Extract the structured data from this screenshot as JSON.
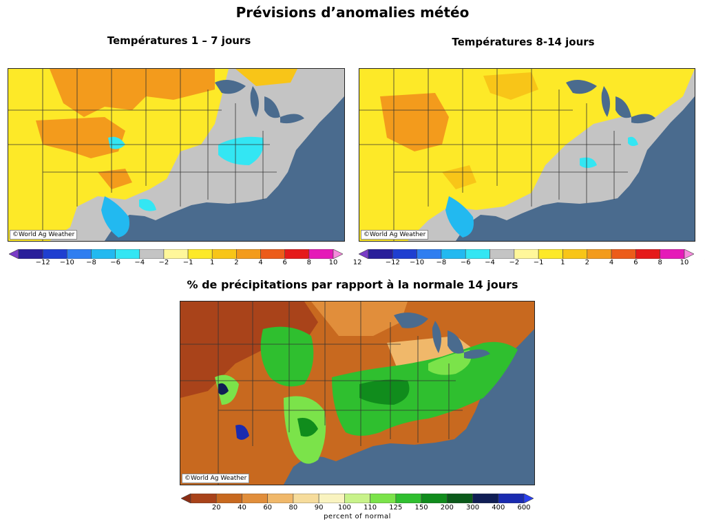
{
  "page": {
    "title": "Prévisions d’anomalies météo"
  },
  "temp_1_7": {
    "title": "Températures 1 – 7 jours",
    "credit": "©World Ag Weather"
  },
  "temp_8_14": {
    "title": "Températures 8-14 jours",
    "credit": "©World Ag Weather"
  },
  "precip_14": {
    "title": "% de précipitations par rapport à la normale 14 jours",
    "credit": "©World Ag Weather"
  },
  "temp_legend": {
    "labels": [
      "−12",
      "−10",
      "−8",
      "−6",
      "−4",
      "−2",
      "−1",
      "1",
      "2",
      "4",
      "6",
      "8",
      "10",
      "12"
    ],
    "colors": [
      "#7a3cc7",
      "#2a1f9a",
      "#1f3fd0",
      "#2f7ef0",
      "#22b9f0",
      "#33e6f3",
      "#c4c4c4",
      "#fff79a",
      "#fde928",
      "#f8c518",
      "#f39b1c",
      "#ec5c1a",
      "#e51a1a",
      "#e51ab8",
      "#f58adc"
    ]
  },
  "precip_legend": {
    "labels": [
      "20",
      "40",
      "60",
      "80",
      "90",
      "100",
      "110",
      "125",
      "150",
      "200",
      "300",
      "400",
      "600"
    ],
    "colors": [
      "#8b2d14",
      "#a9431a",
      "#c8691f",
      "#e18e3b",
      "#f0b86a",
      "#f6dc9c",
      "#f9f3c0",
      "#c8f28a",
      "#7be34a",
      "#2fbf2f",
      "#108c1c",
      "#0b5a1a",
      "#101e55",
      "#1a2bb0",
      "#2a40f0"
    ],
    "caption": "percent of normal"
  },
  "colors": {
    "ocean": "#4a6b8e",
    "land_neutral": "#c4c4c4",
    "border": "#333333"
  }
}
